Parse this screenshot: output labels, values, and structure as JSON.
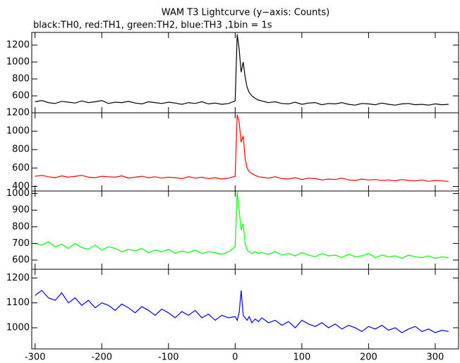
{
  "title": "WAM T3 Lightcurve (y−axis: Counts)",
  "subtitle": "black:TH0, red:TH1, green:TH2, blue:TH3 ,1bin = 1s",
  "chart_data": [
    {
      "type": "line",
      "color": "#000000",
      "x": [
        -300,
        -290,
        -280,
        -270,
        -260,
        -250,
        -240,
        -230,
        -220,
        -210,
        -200,
        -190,
        -180,
        -170,
        -160,
        -150,
        -140,
        -130,
        -120,
        -110,
        -100,
        -90,
        -80,
        -70,
        -60,
        -50,
        -40,
        -30,
        -20,
        -10,
        0,
        3,
        6,
        9,
        12,
        15,
        18,
        21,
        25,
        30,
        35,
        40,
        50,
        60,
        70,
        80,
        90,
        100,
        110,
        120,
        130,
        140,
        150,
        160,
        170,
        180,
        190,
        200,
        210,
        220,
        230,
        240,
        250,
        260,
        270,
        280,
        290,
        300,
        310,
        320
      ],
      "values": [
        530,
        545,
        520,
        510,
        535,
        525,
        515,
        540,
        520,
        530,
        545,
        510,
        525,
        520,
        535,
        515,
        505,
        530,
        520,
        510,
        525,
        515,
        500,
        520,
        510,
        530,
        505,
        515,
        500,
        510,
        540,
        1330,
        1150,
        880,
        1000,
        820,
        700,
        640,
        600,
        570,
        550,
        540,
        520,
        530,
        510,
        505,
        525,
        500,
        515,
        520,
        495,
        510,
        505,
        520,
        500,
        490,
        510,
        505,
        495,
        515,
        500,
        490,
        505,
        510,
        495,
        500,
        490,
        505,
        495,
        500
      ],
      "xlim": [
        -305,
        335
      ],
      "xticks": [
        -300,
        -200,
        -100,
        0,
        100,
        200,
        300
      ],
      "ylim": [
        400,
        1350
      ],
      "yticks": [
        600,
        800,
        1000,
        1200
      ]
    },
    {
      "type": "line",
      "color": "#ff0000",
      "x": [
        -300,
        -290,
        -280,
        -270,
        -260,
        -250,
        -240,
        -230,
        -220,
        -210,
        -200,
        -190,
        -180,
        -170,
        -160,
        -150,
        -140,
        -130,
        -120,
        -110,
        -100,
        -90,
        -80,
        -70,
        -60,
        -50,
        -40,
        -30,
        -20,
        -10,
        0,
        3,
        6,
        9,
        12,
        15,
        18,
        21,
        25,
        30,
        35,
        40,
        50,
        60,
        70,
        80,
        90,
        100,
        110,
        120,
        130,
        140,
        150,
        160,
        170,
        180,
        190,
        200,
        210,
        220,
        230,
        240,
        250,
        260,
        270,
        280,
        290,
        300,
        310,
        320
      ],
      "values": [
        510,
        520,
        505,
        495,
        515,
        500,
        510,
        520,
        500,
        495,
        510,
        505,
        500,
        515,
        490,
        500,
        510,
        495,
        505,
        490,
        500,
        495,
        485,
        505,
        490,
        500,
        485,
        495,
        480,
        490,
        510,
        1180,
        1100,
        880,
        950,
        700,
        600,
        560,
        540,
        520,
        505,
        500,
        490,
        505,
        485,
        480,
        495,
        475,
        490,
        485,
        470,
        480,
        475,
        490,
        470,
        465,
        480,
        470,
        475,
        465,
        470,
        460,
        475,
        465,
        460,
        470,
        455,
        465,
        460,
        455
      ],
      "xlim": [
        -305,
        335
      ],
      "xticks": [
        -300,
        -200,
        -100,
        0,
        100,
        200,
        300
      ],
      "ylim": [
        350,
        1200
      ],
      "yticks": [
        400,
        600,
        800,
        1000,
        1200
      ]
    },
    {
      "type": "line",
      "color": "#00ff00",
      "x": [
        -300,
        -290,
        -280,
        -270,
        -260,
        -250,
        -240,
        -230,
        -220,
        -210,
        -200,
        -190,
        -180,
        -170,
        -160,
        -150,
        -140,
        -130,
        -120,
        -110,
        -100,
        -90,
        -80,
        -70,
        -60,
        -50,
        -40,
        -30,
        -20,
        -10,
        0,
        3,
        6,
        9,
        12,
        15,
        18,
        21,
        25,
        30,
        35,
        40,
        50,
        60,
        70,
        80,
        90,
        100,
        110,
        120,
        130,
        140,
        150,
        160,
        170,
        180,
        190,
        200,
        210,
        220,
        230,
        240,
        250,
        260,
        270,
        280,
        290,
        300,
        310,
        320
      ],
      "values": [
        700,
        690,
        710,
        680,
        695,
        670,
        700,
        675,
        665,
        690,
        660,
        680,
        670,
        650,
        665,
        655,
        670,
        645,
        660,
        650,
        665,
        640,
        655,
        645,
        660,
        640,
        650,
        645,
        635,
        650,
        680,
        1010,
        900,
        780,
        820,
        700,
        660,
        650,
        640,
        650,
        640,
        645,
        635,
        650,
        630,
        640,
        625,
        645,
        630,
        620,
        640,
        625,
        630,
        615,
        635,
        620,
        625,
        640,
        615,
        630,
        620,
        625,
        610,
        630,
        620,
        615,
        625,
        610,
        620,
        615
      ],
      "xlim": [
        -305,
        335
      ],
      "xticks": [
        -300,
        -200,
        -100,
        0,
        100,
        200,
        300
      ],
      "ylim": [
        545,
        1015
      ],
      "yticks": [
        600,
        700,
        800,
        900,
        1000
      ]
    },
    {
      "type": "line",
      "color": "#0000ff",
      "x": [
        -300,
        -290,
        -280,
        -270,
        -260,
        -250,
        -240,
        -230,
        -220,
        -210,
        -200,
        -190,
        -180,
        -170,
        -160,
        -150,
        -140,
        -130,
        -120,
        -110,
        -100,
        -90,
        -80,
        -70,
        -60,
        -50,
        -40,
        -30,
        -20,
        -10,
        0,
        3,
        6,
        9,
        12,
        15,
        18,
        21,
        25,
        30,
        35,
        40,
        50,
        60,
        70,
        80,
        90,
        100,
        110,
        120,
        130,
        140,
        150,
        160,
        170,
        180,
        190,
        200,
        210,
        220,
        230,
        240,
        250,
        260,
        270,
        280,
        290,
        300,
        310,
        320
      ],
      "values": [
        1130,
        1150,
        1120,
        1110,
        1140,
        1100,
        1120,
        1090,
        1110,
        1080,
        1100,
        1090,
        1070,
        1095,
        1080,
        1060,
        1085,
        1070,
        1050,
        1075,
        1060,
        1040,
        1065,
        1050,
        1070,
        1040,
        1055,
        1030,
        1050,
        1040,
        1045,
        1030,
        1060,
        1150,
        1050,
        1040,
        1030,
        1045,
        1020,
        1035,
        1025,
        1040,
        1020,
        1030,
        1010,
        1025,
        1000,
        1030,
        1015,
        1005,
        1020,
        1000,
        1015,
        995,
        1010,
        1000,
        985,
        1005,
        995,
        1010,
        990,
        1000,
        980,
        995,
        1005,
        985,
        995,
        980,
        990,
        985
      ],
      "xlim": [
        -305,
        335
      ],
      "xticks": [
        -300,
        -200,
        -100,
        0,
        100,
        200,
        300
      ],
      "ylim": [
        915,
        1235
      ],
      "yticks": [
        1000,
        1100,
        1200
      ]
    }
  ]
}
